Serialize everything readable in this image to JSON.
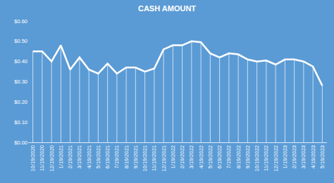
{
  "chart_data": {
    "type": "line",
    "title": "CASH AMOUNT",
    "categories": [
      "10/19/2020",
      "11/19/2020",
      "12/19/2020",
      "1/19/2021",
      "2/19/2021",
      "3/19/2021",
      "4/19/2021",
      "5/19/2021",
      "6/19/2021",
      "7/19/2021",
      "8/19/2021",
      "9/19/2021",
      "10/19/2021",
      "11/19/2021",
      "12/19/2021",
      "1/19/2022",
      "2/19/2022",
      "3/19/2022",
      "4/19/2022",
      "5/19/2022",
      "6/19/2022",
      "7/19/2022",
      "8/19/2022",
      "9/19/2022",
      "10/19/2022",
      "11/19/2022",
      "12/19/2022",
      "1/19/2023",
      "2/19/2023",
      "3/19/2023",
      "4/19/2023",
      "5/19/2023"
    ],
    "values": [
      0.45,
      0.45,
      0.4,
      0.48,
      0.36,
      0.42,
      0.36,
      0.34,
      0.39,
      0.34,
      0.37,
      0.37,
      0.35,
      0.365,
      0.46,
      0.48,
      0.48,
      0.5,
      0.495,
      0.44,
      0.42,
      0.44,
      0.435,
      0.41,
      0.4,
      0.405,
      0.385,
      0.41,
      0.41,
      0.4,
      0.375,
      0.28
    ],
    "color": "#ffffff",
    "ylim": [
      0,
      0.6
    ],
    "yticks": [
      {
        "value": 0,
        "label": "$0.00"
      },
      {
        "value": 0.1,
        "label": "$0.10"
      },
      {
        "value": 0.2,
        "label": "$0.20"
      },
      {
        "value": 0.3,
        "label": "$0.30"
      },
      {
        "value": 0.4,
        "label": "$0.40"
      },
      {
        "value": 0.5,
        "label": "$0.50"
      },
      {
        "value": 0.6,
        "label": "$0.60"
      }
    ],
    "grid": false
  }
}
